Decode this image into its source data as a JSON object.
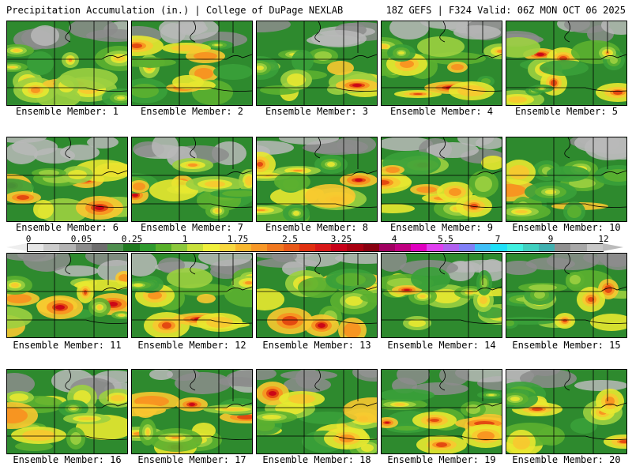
{
  "header": {
    "left_title": "Precipitation Accumulation (in.) | College of DuPage NEXLAB",
    "right_title": "18Z GEFS | F324 Valid: 06Z MON OCT 06 2025"
  },
  "members": [
    {
      "label": "Ensemble Member: 1"
    },
    {
      "label": "Ensemble Member: 2"
    },
    {
      "label": "Ensemble Member: 3"
    },
    {
      "label": "Ensemble Member: 4"
    },
    {
      "label": "Ensemble Member: 5"
    },
    {
      "label": "Ensemble Member: 6"
    },
    {
      "label": "Ensemble Member: 7"
    },
    {
      "label": "Ensemble Member: 8"
    },
    {
      "label": "Ensemble Member: 9"
    },
    {
      "label": "Ensemble Member: 10"
    },
    {
      "label": "Ensemble Member: 11"
    },
    {
      "label": "Ensemble Member: 12"
    },
    {
      "label": "Ensemble Member: 13"
    },
    {
      "label": "Ensemble Member: 14"
    },
    {
      "label": "Ensemble Member: 15"
    },
    {
      "label": "Ensemble Member: 16"
    },
    {
      "label": "Ensemble Member: 17"
    },
    {
      "label": "Ensemble Member: 18"
    },
    {
      "label": "Ensemble Member: 19"
    },
    {
      "label": "Ensemble Member: 20"
    }
  ],
  "colorbar": {
    "ticks": [
      "0",
      "0.05",
      "0.25",
      "1",
      "1.75",
      "2.5",
      "3.25",
      "4",
      "5.5",
      "7",
      "9",
      "12"
    ],
    "colors": [
      "#e6e6e6",
      "#cccccc",
      "#b3b3b3",
      "#8c8c8c",
      "#6e6e6e",
      "#4f8f4f",
      "#1f7a1f",
      "#2e9a2e",
      "#58b02a",
      "#8cc83c",
      "#c8e03c",
      "#f0f03c",
      "#f8d840",
      "#f8b830",
      "#f89828",
      "#f07820",
      "#e85818",
      "#e03010",
      "#d81818",
      "#c80018",
      "#a80010",
      "#880010",
      "#a00060",
      "#c00080",
      "#e000c0",
      "#e040f0",
      "#b060f0",
      "#8080f8",
      "#40c0f8",
      "#20e0f8",
      "#40f0e0",
      "#40d0c0",
      "#40b0b0",
      "#909090",
      "#a8a8a8",
      "#c8c8c8"
    ],
    "left_cap_color": "#eeeeee",
    "right_cap_color": "#bbbbbb"
  }
}
